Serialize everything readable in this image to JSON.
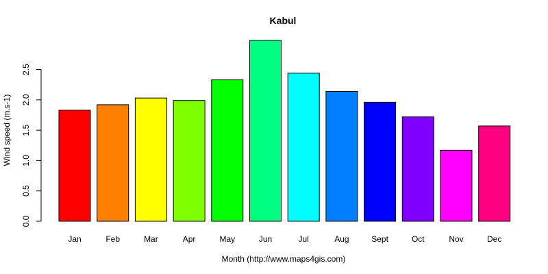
{
  "chart_data": {
    "type": "bar",
    "title": "Kabul",
    "xlabel": "Month (http://www.maps4gis.com)",
    "ylabel": "Wind speed (m.s-1)",
    "categories": [
      "Jan",
      "Feb",
      "Mar",
      "Apr",
      "May",
      "Jun",
      "Jul",
      "Aug",
      "Sept",
      "Oct",
      "Nov",
      "Dec"
    ],
    "values": [
      1.83,
      1.92,
      2.03,
      1.99,
      2.33,
      2.98,
      2.44,
      2.14,
      1.96,
      1.72,
      1.17,
      1.57
    ],
    "colors": [
      "#FF0000",
      "#FF8000",
      "#FFFF00",
      "#80FF00",
      "#00FF00",
      "#00FF80",
      "#00FFFF",
      "#0080FF",
      "#0000FF",
      "#8000FF",
      "#FF00FF",
      "#FF0080"
    ],
    "yticks": [
      "0.0",
      "0.5",
      "1.0",
      "1.5",
      "2.0",
      "2.5"
    ],
    "ylim": [
      0,
      3
    ],
    "grid": false,
    "legend": "none"
  }
}
